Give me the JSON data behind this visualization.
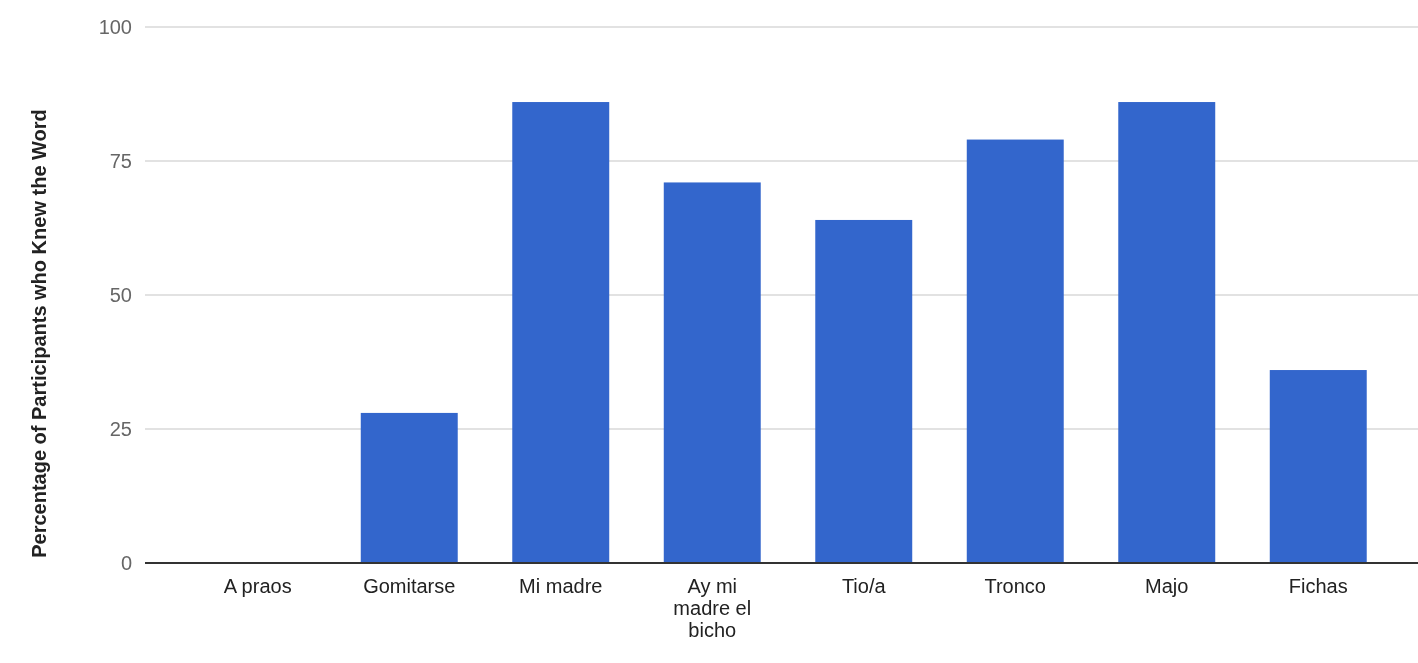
{
  "chart_data": {
    "type": "bar",
    "ylabel": "Percentage of Participants who Knew the Word",
    "categories": [
      "A praos",
      "Gomitarse",
      "Mi madre",
      "Ay mi madre el bicho",
      "Tio/a",
      "Tronco",
      "Majo",
      "Fichas"
    ],
    "values": [
      0,
      28,
      86,
      71,
      64,
      79,
      86,
      36
    ],
    "color": "#3366cc",
    "ylim": [
      0,
      100
    ],
    "yticks": [
      0,
      25,
      50,
      75,
      100
    ],
    "grid": "y"
  }
}
